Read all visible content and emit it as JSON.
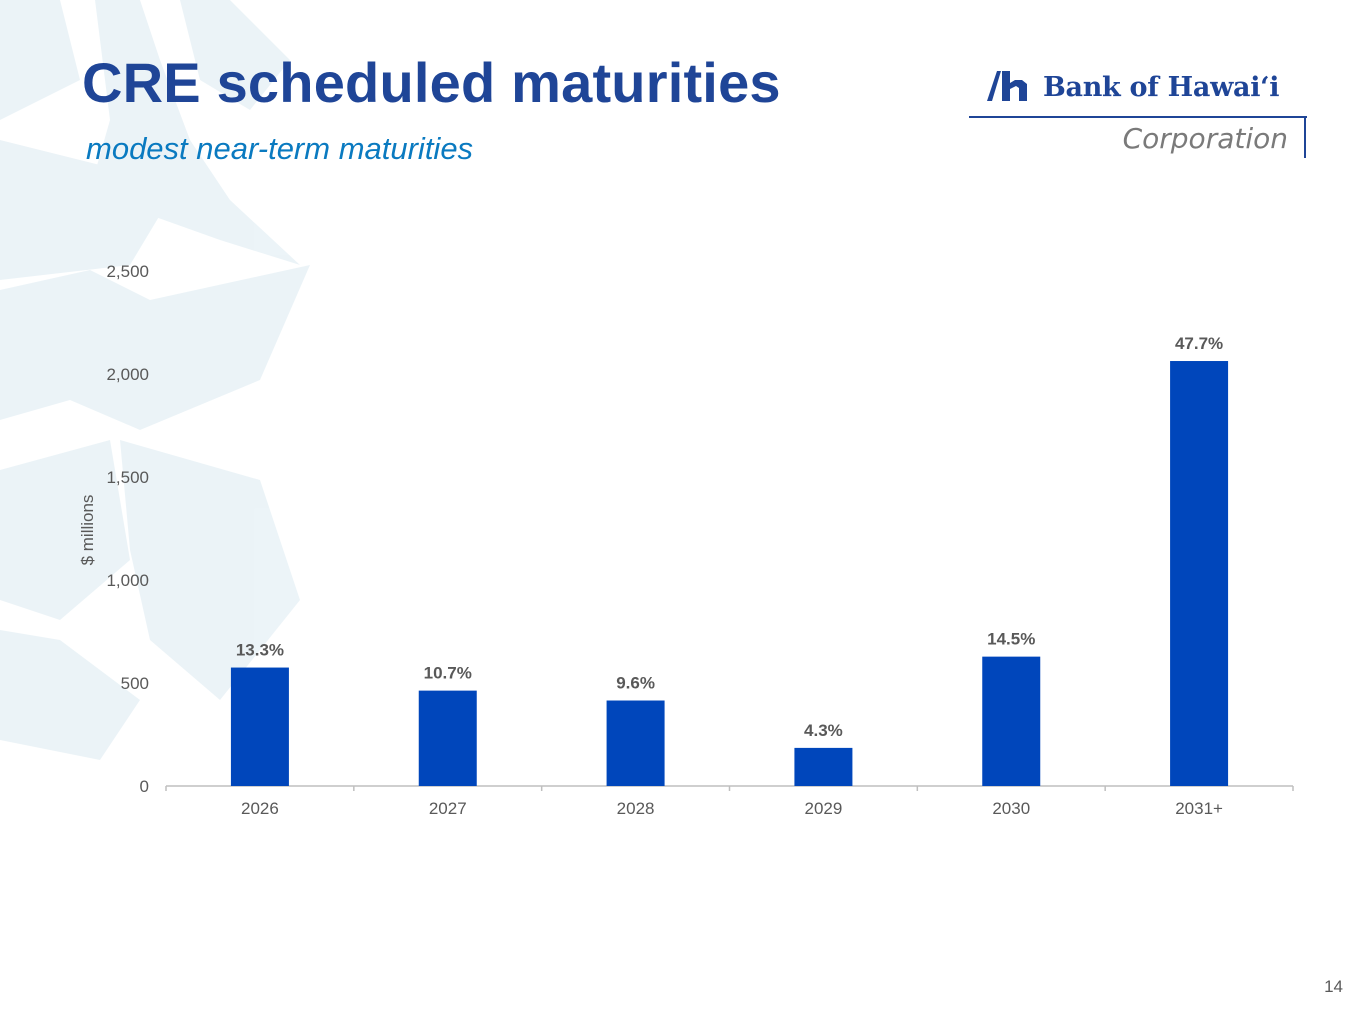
{
  "slide": {
    "title": "CRE scheduled maturities",
    "subtitle": "modest near-term maturities",
    "page_number": "14"
  },
  "logo": {
    "name": "Bank of Hawaiʻi",
    "subtitle": "Corporation",
    "brand_color": "#1f4597"
  },
  "chart_data": {
    "type": "bar",
    "categories": [
      "2026",
      "2027",
      "2028",
      "2029",
      "2030",
      "2031+"
    ],
    "values": [
      575,
      463,
      415,
      185,
      628,
      2063
    ],
    "data_labels": [
      "13.3%",
      "10.7%",
      "9.6%",
      "4.3%",
      "14.5%",
      "47.7%"
    ],
    "ylabel": "$ millions",
    "ylim": [
      0,
      2500
    ],
    "yticks": [
      0,
      500,
      1000,
      1500,
      2000,
      2500
    ],
    "ytick_labels": [
      "0",
      "500",
      "1,000",
      "1,500",
      "2,000",
      "2,500"
    ],
    "grid": false,
    "bar_color": "#0046bb",
    "text_color": "#595959"
  }
}
